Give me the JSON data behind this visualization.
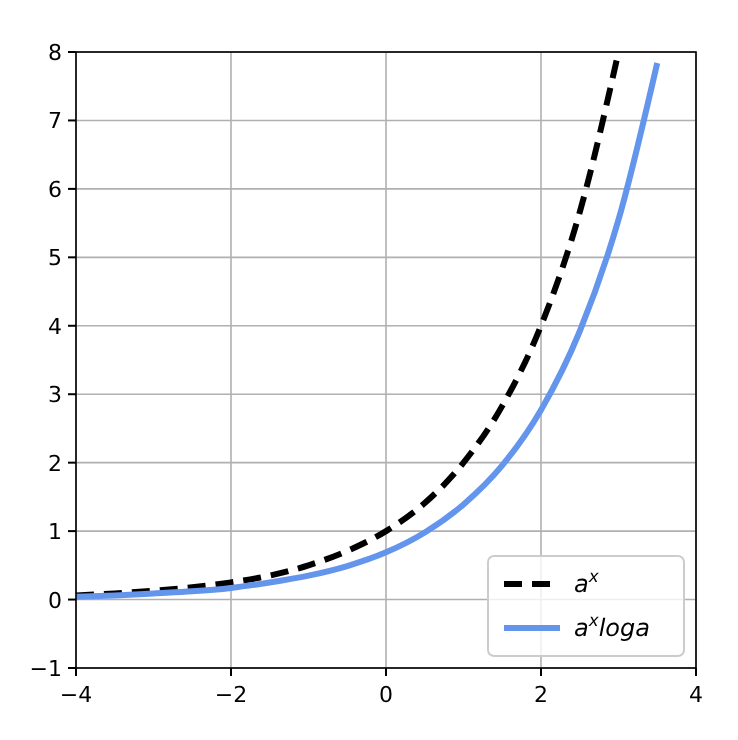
{
  "chart_data": {
    "type": "line",
    "x": [
      -4,
      -3.5,
      -3,
      -2.5,
      -2,
      -1.5,
      -1,
      -0.5,
      0,
      0.5,
      1,
      1.5,
      2,
      2.5,
      3,
      3.5
    ],
    "series": [
      {
        "name": "a$^{x}$",
        "color": "#000000",
        "line_style": "dashed",
        "values": [
          0.06,
          0.09,
          0.13,
          0.18,
          0.25,
          0.35,
          0.5,
          0.71,
          1,
          1.41,
          2,
          2.83,
          4,
          5.66,
          8,
          null
        ]
      },
      {
        "name": "a$^{x}$loga",
        "color": "#6495ed",
        "line_style": "solid",
        "values": [
          0.04,
          0.06,
          0.09,
          0.12,
          0.17,
          0.25,
          0.35,
          0.49,
          0.69,
          0.98,
          1.39,
          1.96,
          2.77,
          3.92,
          5.55,
          7.84
        ]
      }
    ],
    "xlim": [
      -4,
      4
    ],
    "xticks": [
      -4,
      -2,
      0,
      2,
      4
    ],
    "ylim": [
      -1,
      8
    ],
    "yticks": [
      -1,
      0,
      1,
      2,
      3,
      4,
      5,
      6,
      7,
      8
    ],
    "grid": true,
    "legend": "bottom right"
  }
}
